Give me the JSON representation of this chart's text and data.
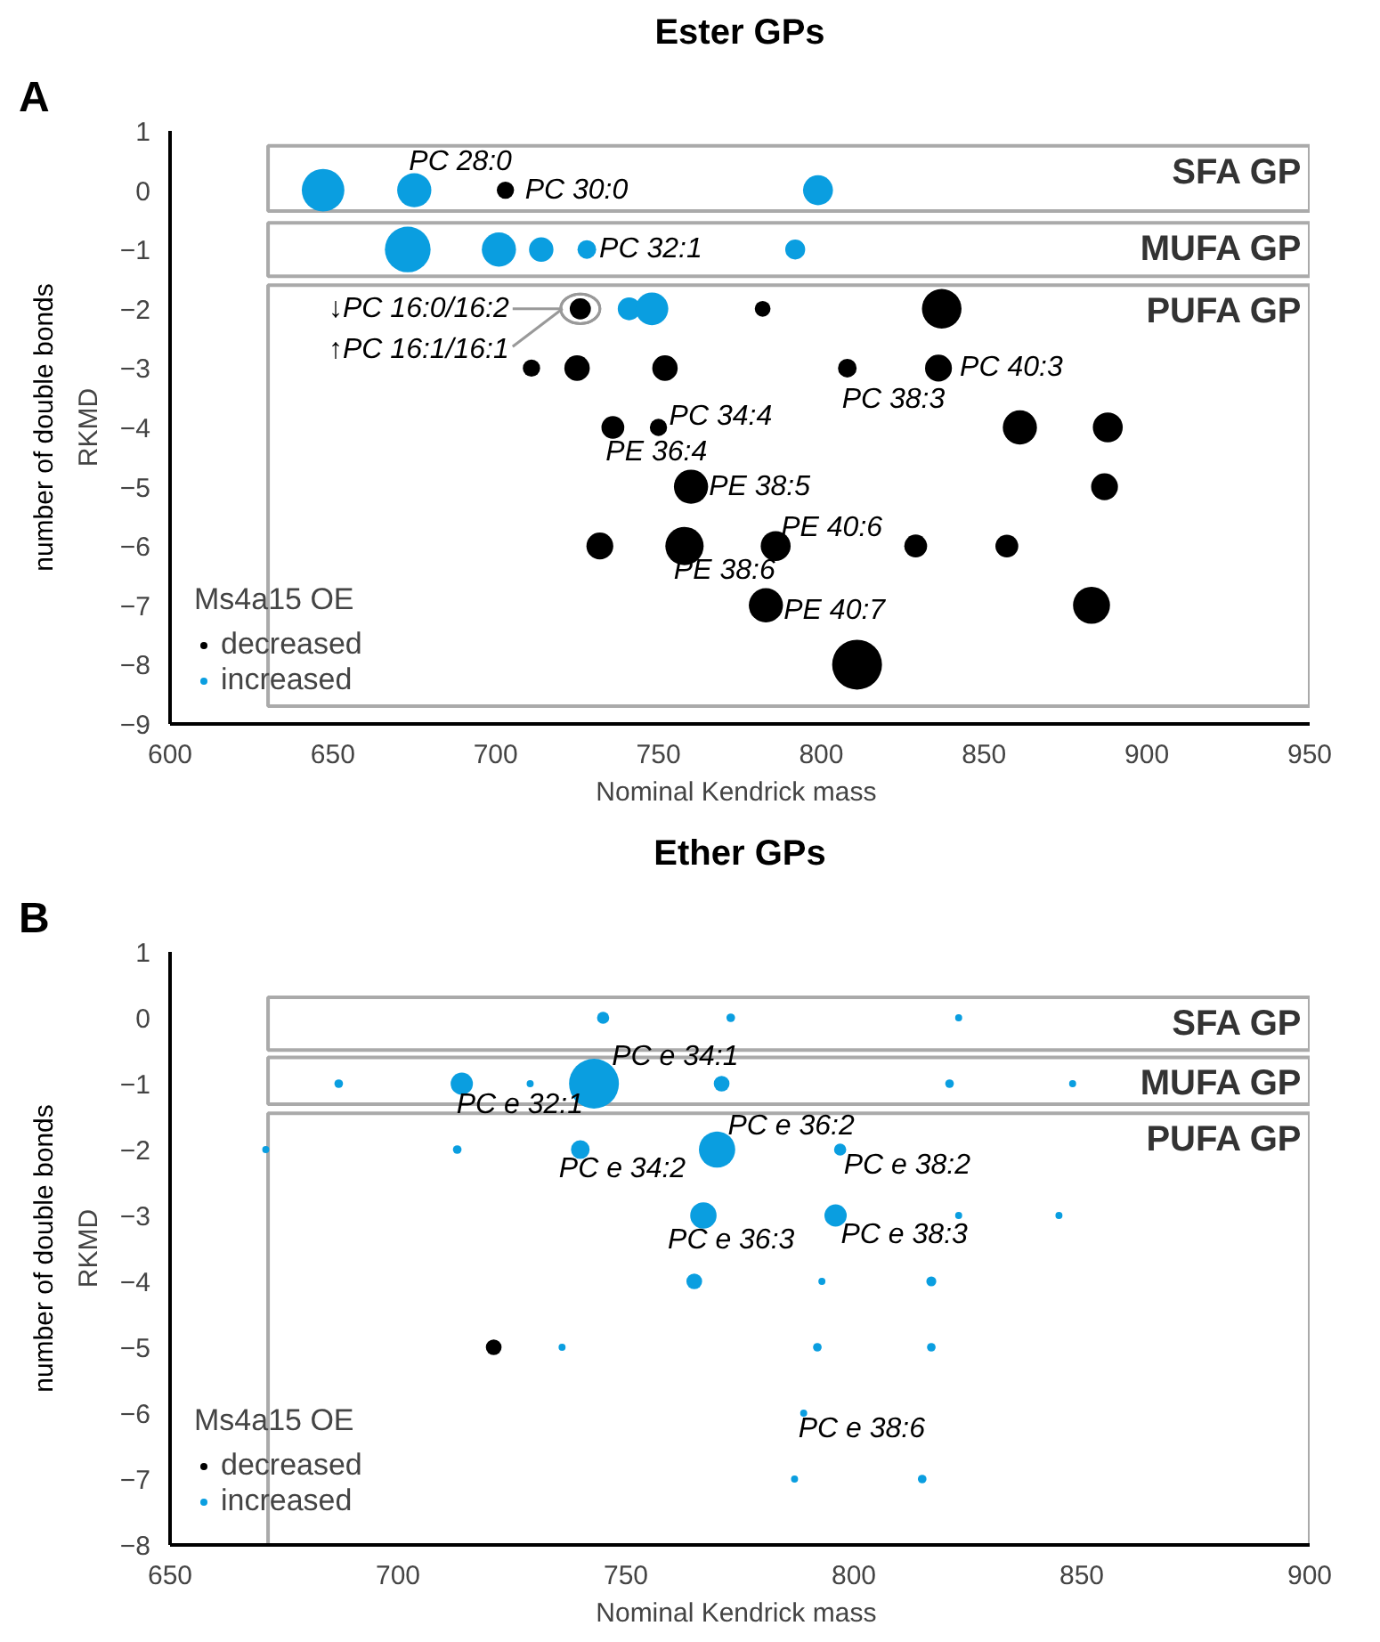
{
  "chart_data": [
    {
      "type": "bubble",
      "title": "Ester GPs",
      "xlabel": "Nominal  Kendrick mass",
      "ylabel": "RKMD",
      "legend_title": "Ms4a15 OE",
      "legend": "bottom left",
      "grid": false,
      "xlim": [
        600,
        950
      ],
      "xticks": [
        600,
        650,
        700,
        750,
        800,
        850,
        900,
        950
      ],
      "ylim": [
        -9,
        1
      ],
      "yticks": [
        -9,
        -8,
        -7,
        -6,
        -5,
        -4,
        -3,
        -2,
        -1,
        0,
        1
      ],
      "series": [
        {
          "name": "decreased",
          "color": "#000000",
          "x": [
            703,
            726,
            782,
            837,
            711,
            725,
            752,
            808,
            836,
            736,
            750,
            861,
            888,
            760,
            887,
            732,
            758,
            786,
            829,
            857,
            783,
            883,
            811
          ],
          "values": [
            0,
            -2,
            -2,
            -2,
            -3,
            -3,
            -3,
            -3,
            -3,
            -4,
            -4,
            -4,
            -4,
            -5,
            -5,
            -6,
            -6,
            -6,
            -6,
            -6,
            -7,
            -7,
            -8
          ],
          "sizes": [
            0.12,
            0.18,
            0.1,
            0.63,
            0.12,
            0.26,
            0.26,
            0.14,
            0.29,
            0.21,
            0.12,
            0.47,
            0.36,
            0.47,
            0.29,
            0.29,
            0.59,
            0.36,
            0.21,
            0.21,
            0.47,
            0.55,
            1
          ]
        },
        {
          "name": "increased",
          "color": "#0a9ee0",
          "x": [
            647,
            675,
            799,
            673,
            701,
            714,
            728,
            792,
            741,
            748
          ],
          "values": [
            0,
            0,
            0,
            -1,
            -1,
            -1,
            -1,
            -1,
            -2,
            -2
          ],
          "sizes": [
            0.73,
            0.47,
            0.36,
            0.84,
            0.47,
            0.24,
            0.14,
            0.16,
            0.21,
            0.43
          ]
        }
      ],
      "bands": [
        {
          "axis": "y",
          "from": -0.35,
          "to": 0.75,
          "label": "SFA GP"
        },
        {
          "axis": "y",
          "from": -1.45,
          "to": -0.55,
          "label": "MUFA GP"
        },
        {
          "axis": "y",
          "from": -8.7,
          "to": -1.6,
          "label": "PUFA GP"
        }
      ],
      "annotations": [
        "A",
        "number of double bonds",
        {
          "text": "PC 28:0",
          "x": 675,
          "y": 0
        },
        {
          "text": "PC 30:0",
          "x": 703,
          "y": 0
        },
        {
          "text": "PC 32:1",
          "x": 728,
          "y": -1
        },
        {
          "text": "↓PC 16:0/16:2",
          "x": 726,
          "y": -2
        },
        {
          "text": "↑PC 16:1/16:1",
          "x": 726,
          "y": -2
        },
        {
          "text": "PC 40:3",
          "x": 836,
          "y": -3
        },
        {
          "text": "PC 38:3",
          "x": 808,
          "y": -3
        },
        {
          "text": "PC 34:4",
          "x": 750,
          "y": -4
        },
        {
          "text": "PE 36:4",
          "x": 736,
          "y": -4
        },
        {
          "text": "PE 38:5",
          "x": 760,
          "y": -5
        },
        {
          "text": "PE 40:6",
          "x": 786,
          "y": -6
        },
        {
          "text": "PE 38:6",
          "x": 758,
          "y": -6
        },
        {
          "text": "PE 40:7",
          "x": 783,
          "y": -7
        }
      ]
    },
    {
      "type": "bubble",
      "title": "Ether GPs",
      "xlabel": "Nominal  Kendrick mass",
      "ylabel": "RKMD",
      "legend_title": "Ms4a15 OE",
      "legend": "bottom left",
      "grid": false,
      "xlim": [
        650,
        900
      ],
      "xticks": [
        650,
        700,
        750,
        800,
        850,
        900
      ],
      "ylim": [
        -8,
        1
      ],
      "yticks": [
        -8,
        -7,
        -6,
        -5,
        -4,
        -3,
        -2,
        -1,
        0,
        1
      ],
      "series": [
        {
          "name": "decreased",
          "color": "#000000",
          "x": [
            721
          ],
          "values": [
            -5
          ],
          "sizes": [
            0.1
          ]
        },
        {
          "name": "increased",
          "color": "#0a9ee0",
          "x": [
            745,
            773,
            823,
            687,
            714,
            729,
            743,
            771,
            821,
            848,
            671,
            713,
            740,
            770,
            797,
            767,
            796,
            823,
            845,
            765,
            793,
            817,
            736,
            792,
            817,
            789,
            787,
            815
          ],
          "values": [
            0,
            0,
            0,
            -1,
            -1,
            -1,
            -1,
            -1,
            -1,
            -1,
            -2,
            -2,
            -2,
            -2,
            -2,
            -3,
            -3,
            -3,
            -3,
            -4,
            -4,
            -4,
            -5,
            -5,
            -5,
            -6,
            -7,
            -7
          ],
          "sizes": [
            0.06,
            0.03,
            0.02,
            0.03,
            0.2,
            0.02,
            1,
            0.1,
            0.03,
            0.02,
            0.02,
            0.03,
            0.14,
            0.53,
            0.06,
            0.28,
            0.2,
            0.02,
            0.02,
            0.1,
            0.02,
            0.04,
            0.02,
            0.03,
            0.03,
            0.02,
            0.02,
            0.03
          ]
        }
      ],
      "bands": [
        {
          "axis": "y",
          "from": -0.49,
          "to": 0.31,
          "label": "SFA GP"
        },
        {
          "axis": "y",
          "from": -1.31,
          "to": -0.6,
          "label": "MUFA GP"
        },
        {
          "axis": "y",
          "from": -8.2,
          "to": -1.45,
          "label": "PUFA GP"
        }
      ],
      "annotations": [
        "B",
        "number of double bonds",
        {
          "text": "PC e 34:1",
          "x": 743,
          "y": -1
        },
        {
          "text": "PC e 32:1",
          "x": 714,
          "y": -1
        },
        {
          "text": "PC e 36:2",
          "x": 770,
          "y": -2
        },
        {
          "text": "PC e 38:2",
          "x": 797,
          "y": -2
        },
        {
          "text": "PC e 34:2",
          "x": 740,
          "y": -2
        },
        {
          "text": "PC e 36:3",
          "x": 767,
          "y": -3
        },
        {
          "text": "PC e 38:3",
          "x": 796,
          "y": -3
        },
        {
          "text": "PC e 38:6",
          "x": 789,
          "y": -6
        }
      ]
    }
  ]
}
